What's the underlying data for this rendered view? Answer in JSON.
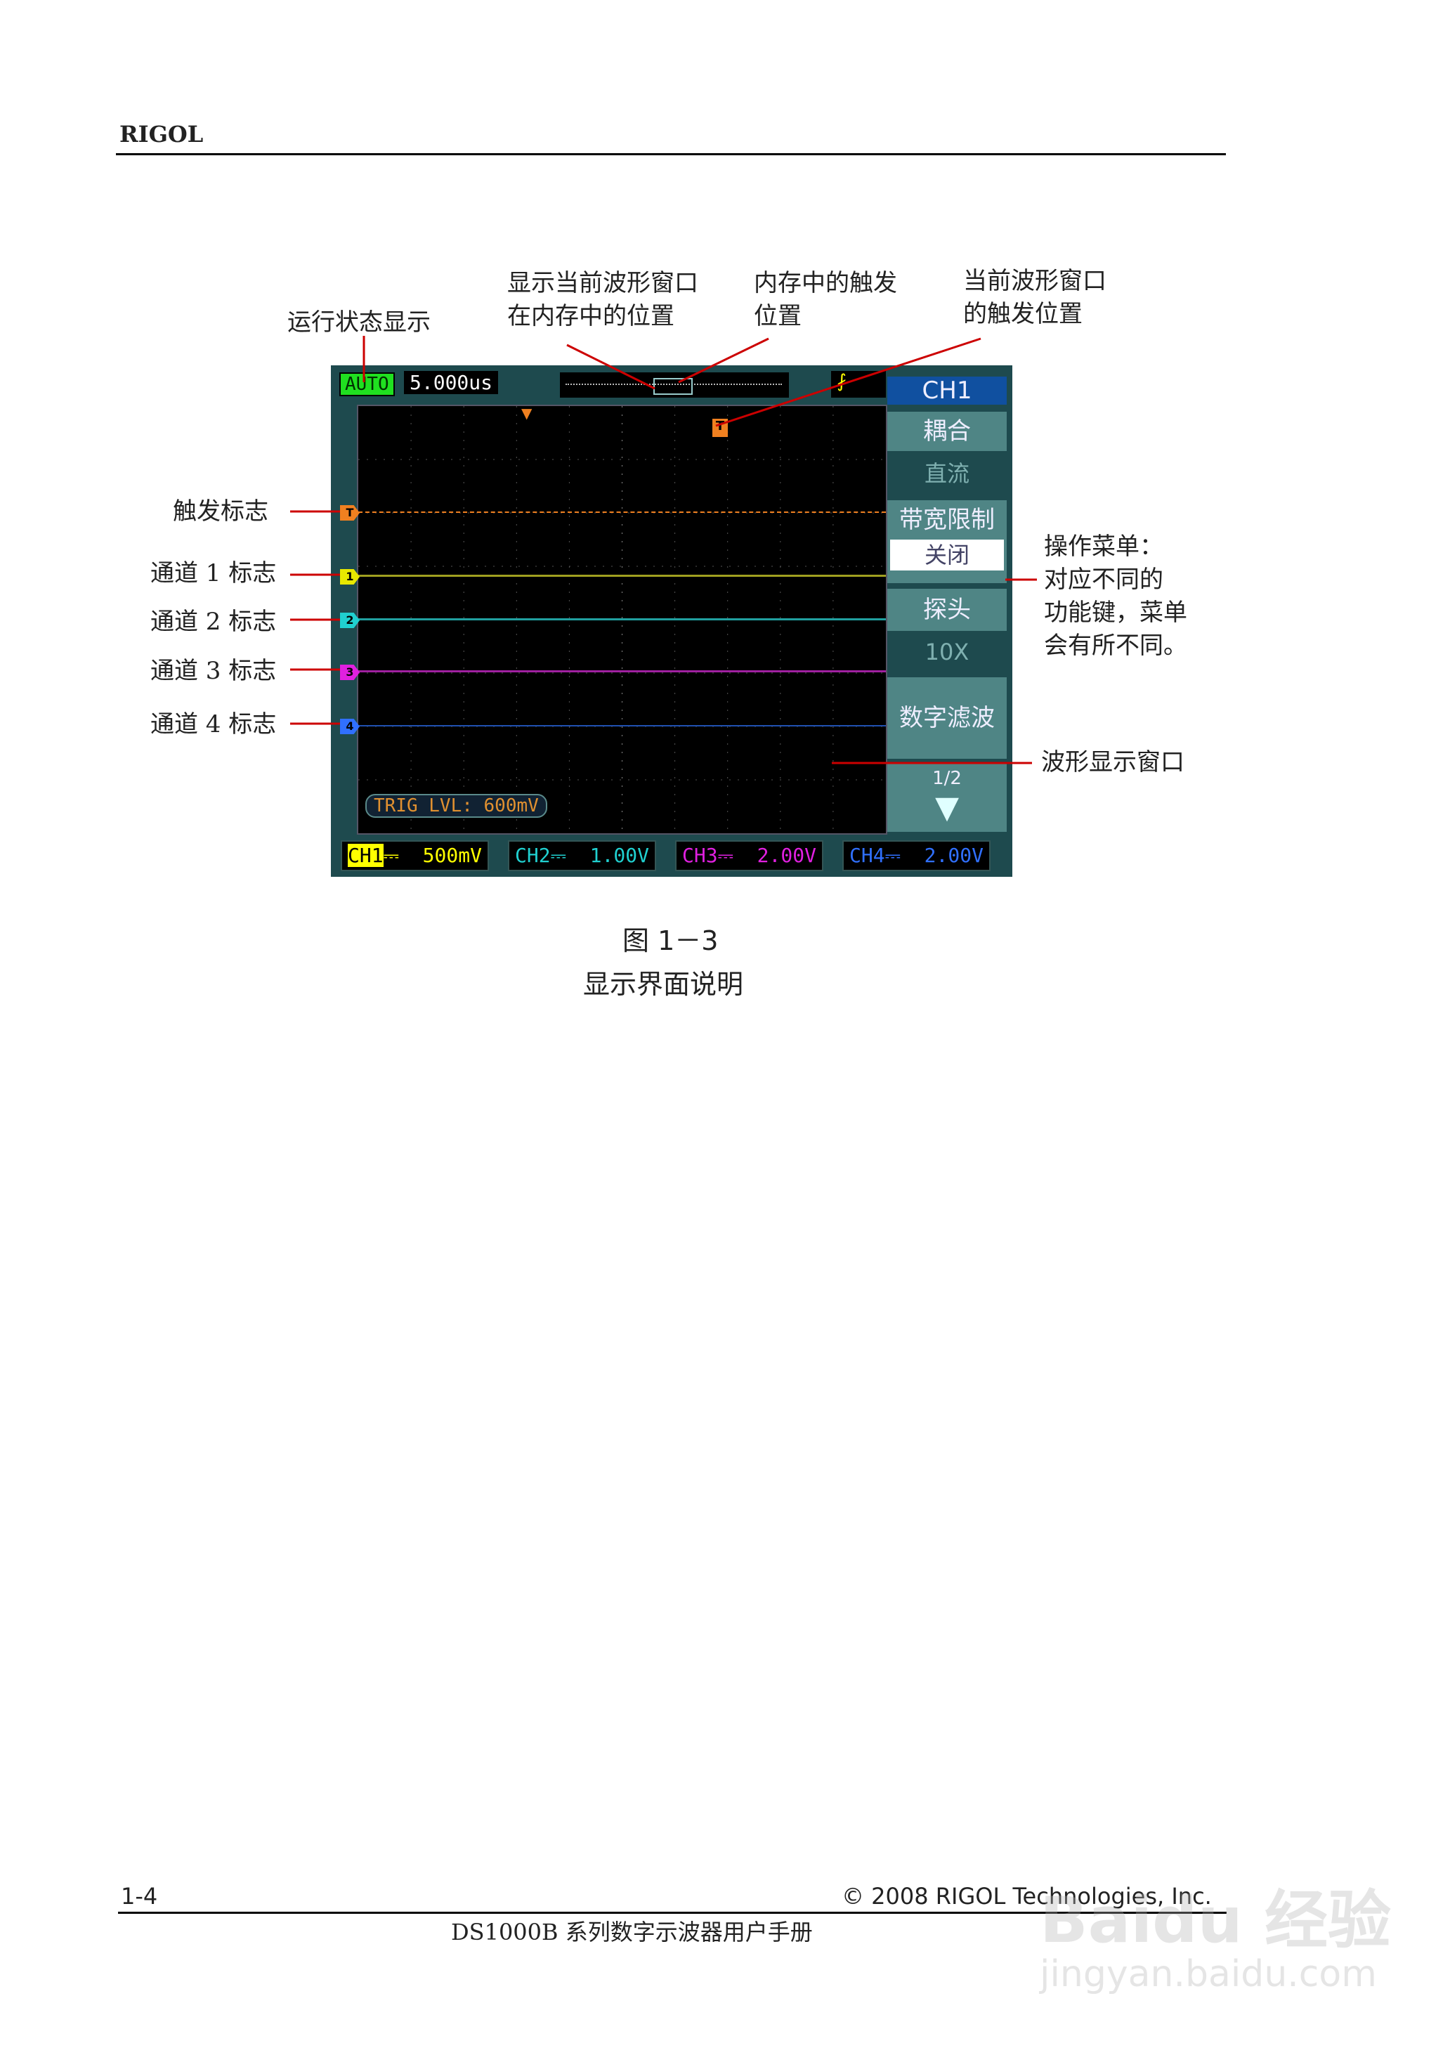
{
  "header": {
    "brand": "RIGOL"
  },
  "annotations": {
    "run_status": "运行状态显示",
    "window_pos_1": "显示当前波形窗口",
    "window_pos_2": "在内存中的位置",
    "mem_trig_1": "内存中的触发",
    "mem_trig_2": "位置",
    "cur_trig_1": "当前波形窗口",
    "cur_trig_2": "的触发位置",
    "trigger_mark": "触发标志",
    "ch1_mark": "通道 1 标志",
    "ch2_mark": "通道 2 标志",
    "ch3_mark": "通道 3 标志",
    "ch4_mark": "通道 4 标志",
    "menu_1": "操作菜单：",
    "menu_2": "对应不同的",
    "menu_3": "功能键，菜单",
    "menu_4": "会有所不同。",
    "wave_window": "波形显示窗口"
  },
  "scope": {
    "status": "AUTO",
    "timebase": "5.000us",
    "trig_level": "TRIG LVL: 600mV",
    "markers": {
      "trigger": "T",
      "ch1": "1",
      "ch2": "2",
      "ch3": "3",
      "ch4": "4"
    },
    "menu": {
      "title": "CH1",
      "coupling_label": "耦合",
      "coupling_value": "直流",
      "bw_label": "带宽限制",
      "bw_value": "关闭",
      "probe_label": "探头",
      "probe_value": "10X",
      "filter_label": "数字滤波",
      "page": "1/2"
    },
    "channels": [
      {
        "name": "CH1",
        "scale": "500mV",
        "color": "#e8e800"
      },
      {
        "name": "CH2",
        "scale": "1.00V",
        "color": "#20d0d0"
      },
      {
        "name": "CH3",
        "scale": "2.00V",
        "color": "#e020e0"
      },
      {
        "name": "CH4",
        "scale": "2.00V",
        "color": "#3070ff"
      }
    ],
    "trigger_color": "#f08020"
  },
  "caption": {
    "figure": "图 1－3",
    "title": "显示界面说明"
  },
  "footer": {
    "page": "1-4",
    "copyright": "© 2008 RIGOL Technologies, Inc.",
    "manual": "DS1000B 系列数字示波器用户手册"
  },
  "watermark": {
    "text": "Baidu 经验",
    "url_text": "jingyan.baidu.com"
  }
}
